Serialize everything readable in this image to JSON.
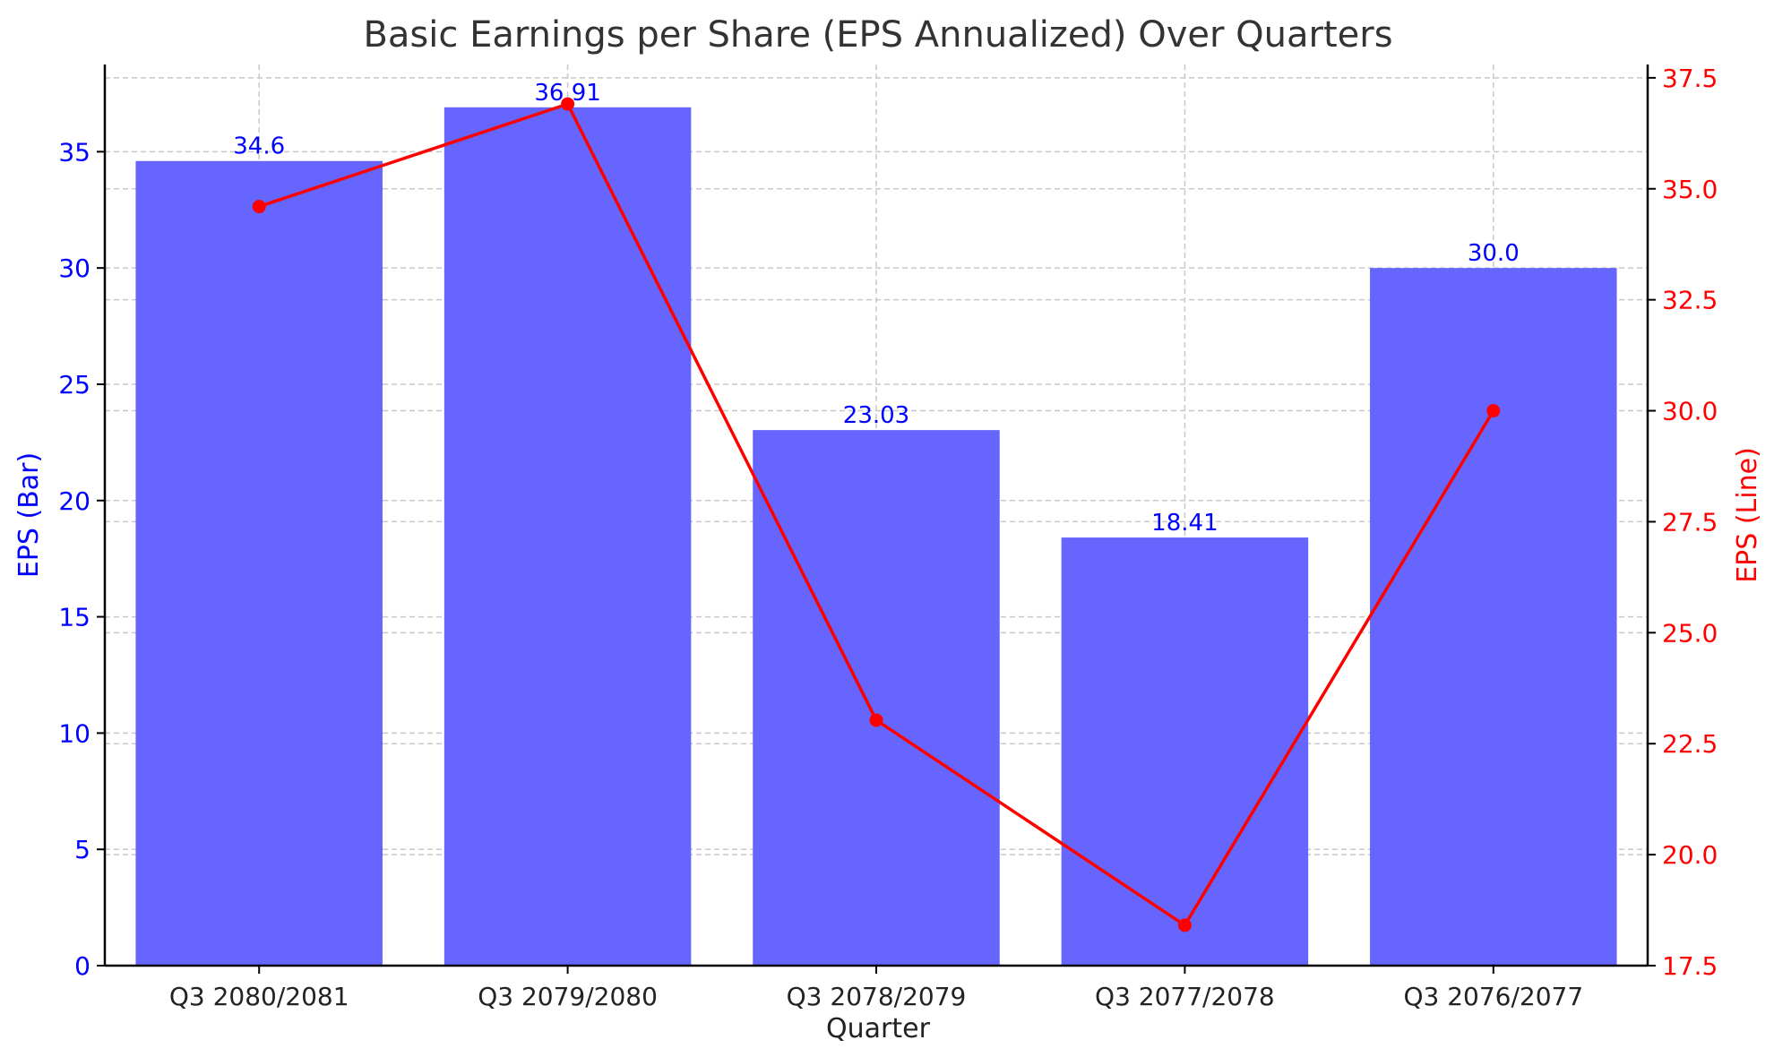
{
  "chart_data": {
    "type": "bar",
    "title": "Basic Earnings per Share (EPS Annualized) Over Quarters",
    "xlabel": "Quarter",
    "ylabel_left": "EPS (Bar)",
    "ylabel_right": "EPS (Line)",
    "categories": [
      "Q3 2080/2081",
      "Q3 2079/2080",
      "Q3 2078/2079",
      "Q3 2077/2078",
      "Q3 2076/2077"
    ],
    "series": [
      {
        "type": "bar",
        "axis": "left",
        "values": [
          34.6,
          36.91,
          23.03,
          18.41,
          30.0
        ],
        "labels": [
          "34.6",
          "36.91",
          "23.03",
          "18.41",
          "30.0"
        ],
        "color": "#6666ff"
      },
      {
        "type": "line",
        "axis": "right",
        "values": [
          34.6,
          36.91,
          23.03,
          18.41,
          30.0
        ],
        "color": "#ff0000",
        "marker": "circle"
      }
    ],
    "ylim_left": [
      0,
      38.75
    ],
    "yticks_left": [
      "0",
      "5",
      "10",
      "15",
      "20",
      "25",
      "30",
      "35"
    ],
    "ylim_right": [
      17.5,
      37.8
    ],
    "yticks_right": [
      "17.5",
      "20.0",
      "22.5",
      "25.0",
      "27.5",
      "30.0",
      "32.5",
      "35.0",
      "37.5"
    ],
    "grid": true,
    "left_axis_color": "#0000ff",
    "right_axis_color": "#ff0000",
    "bar_label_color": "#0000ff"
  }
}
